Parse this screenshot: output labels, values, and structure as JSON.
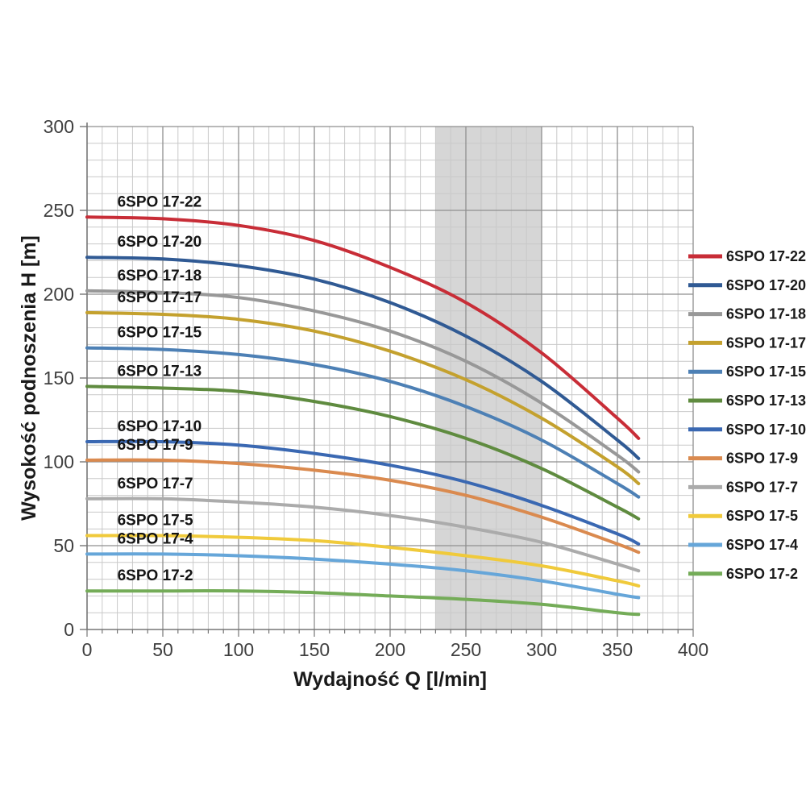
{
  "page": {
    "background": "#ffffff"
  },
  "chart_data": {
    "type": "line",
    "title": "",
    "xlabel": "Wydajność Q [l/min]",
    "ylabel": "Wysokość podnoszenia H [m]",
    "xlim": [
      0,
      400
    ],
    "ylim": [
      0,
      300
    ],
    "x_ticks": [
      0,
      50,
      100,
      150,
      200,
      250,
      300,
      350,
      400
    ],
    "y_ticks": [
      0,
      50,
      100,
      150,
      200,
      250,
      300
    ],
    "x_minor_step": 10,
    "y_minor_step": 10,
    "grid": "major+minor",
    "legend_position": "right",
    "operating_band": {
      "x_from": 230,
      "x_to": 300
    },
    "x": [
      0,
      50,
      100,
      150,
      200,
      250,
      300,
      350,
      364
    ],
    "series": [
      {
        "name": "6SPO 17-22",
        "color": "#c82d37",
        "values": [
          246,
          245,
          241,
          232,
          216,
          195,
          165,
          126,
          114
        ]
      },
      {
        "name": "6SPO 17-20",
        "color": "#305a94",
        "values": [
          222,
          221,
          217,
          209,
          195,
          175,
          148,
          113,
          102
        ]
      },
      {
        "name": "6SPO 17-18",
        "color": "#989898",
        "values": [
          202,
          201,
          198,
          190,
          178,
          160,
          135,
          104,
          94
        ]
      },
      {
        "name": "6SPO 17-17",
        "color": "#c4a12e",
        "values": [
          189,
          188,
          185,
          178,
          166,
          149,
          126,
          97,
          87
        ]
      },
      {
        "name": "6SPO 17-15",
        "color": "#4d80b5",
        "values": [
          168,
          167,
          164,
          158,
          148,
          133,
          113,
          87,
          79
        ]
      },
      {
        "name": "6SPO 17-13",
        "color": "#5f8b3f",
        "values": [
          145,
          144,
          142,
          136,
          127,
          114,
          96,
          73,
          66
        ]
      },
      {
        "name": "6SPO 17-10",
        "color": "#3a68b2",
        "values": [
          112,
          112,
          110,
          105,
          98,
          88,
          74,
          57,
          51
        ]
      },
      {
        "name": "6SPO 17-9",
        "color": "#da8a4f",
        "values": [
          101,
          101,
          99,
          95,
          89,
          80,
          67,
          51,
          46
        ]
      },
      {
        "name": "6SPO 17-7",
        "color": "#ababab",
        "values": [
          78,
          78,
          76,
          73,
          68,
          61,
          52,
          39,
          35
        ]
      },
      {
        "name": "6SPO 17-5",
        "color": "#f0ca3b",
        "values": [
          56,
          56,
          55,
          53,
          49,
          44,
          38,
          29,
          26
        ]
      },
      {
        "name": "6SPO 17-4",
        "color": "#66a6d9",
        "values": [
          45,
          45,
          44,
          42,
          39,
          35,
          29,
          21,
          19
        ]
      },
      {
        "name": "6SPO 17-2",
        "color": "#74ac58",
        "values": [
          23,
          23,
          23,
          22,
          20,
          18,
          15,
          10,
          9
        ]
      }
    ]
  },
  "colors": {
    "band": "#d6d6d6",
    "minor_grid": "#c9c9c9",
    "major_grid": "#8f8f8f",
    "axis": "#767676",
    "tick_label": "#3f3f3f",
    "curve_label": "#141414",
    "legend_label": "#1a1a1a"
  }
}
